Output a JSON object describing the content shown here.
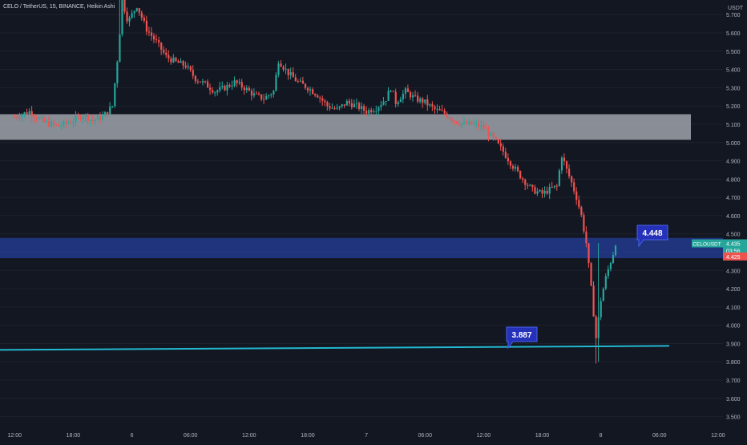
{
  "header": {
    "symbol_title": "CELO / TetherUS, 15, BINANCE, Heikin Ashi"
  },
  "chart_data": {
    "type": "candlestick",
    "title": "CELO / TetherUS, 15, BINANCE, Heikin Ashi",
    "currency_label": "USDT",
    "ylim": [
      3.45,
      5.78
    ],
    "y_ticks": [
      "5.700",
      "5.600",
      "5.500",
      "5.400",
      "5.300",
      "5.200",
      "5.100",
      "5.000",
      "4.900",
      "4.800",
      "4.700",
      "4.600",
      "4.500",
      "4.400",
      "4.300",
      "4.200",
      "4.100",
      "4.000",
      "3.900",
      "3.800",
      "3.700",
      "3.600",
      "3.500"
    ],
    "x_ticks": [
      "12:00",
      "18:00",
      "6",
      "06:00",
      "12:00",
      "18:00",
      "7",
      "06:00",
      "12:00",
      "18:00",
      "8",
      "06:00",
      "12:00",
      "18:00"
    ],
    "x_range_hours": [
      -1.5,
      72.5
    ],
    "up_color": "#26a69a",
    "down_color": "#ef5350",
    "background": "#131722",
    "grid": true,
    "anchors": [
      {
        "t": 0,
        "p": 5.14
      },
      {
        "t": 1.5,
        "p": 5.17
      },
      {
        "t": 3,
        "p": 5.11
      },
      {
        "t": 4.5,
        "p": 5.09
      },
      {
        "t": 6,
        "p": 5.12
      },
      {
        "t": 7,
        "p": 5.15
      },
      {
        "t": 8,
        "p": 5.12
      },
      {
        "t": 9,
        "p": 5.14
      },
      {
        "t": 10,
        "p": 5.2
      },
      {
        "t": 10.6,
        "p": 5.5
      },
      {
        "t": 11,
        "p": 5.78
      },
      {
        "t": 11.6,
        "p": 5.66
      },
      {
        "t": 12.5,
        "p": 5.75
      },
      {
        "t": 13.5,
        "p": 5.62
      },
      {
        "t": 14.5,
        "p": 5.55
      },
      {
        "t": 15.5,
        "p": 5.47
      },
      {
        "t": 16.5,
        "p": 5.44
      },
      {
        "t": 17.5,
        "p": 5.42
      },
      {
        "t": 18.5,
        "p": 5.35
      },
      {
        "t": 19.5,
        "p": 5.32
      },
      {
        "t": 20.5,
        "p": 5.28
      },
      {
        "t": 21.5,
        "p": 5.3
      },
      {
        "t": 22.5,
        "p": 5.33
      },
      {
        "t": 23.5,
        "p": 5.3
      },
      {
        "t": 24.5,
        "p": 5.26
      },
      {
        "t": 25.5,
        "p": 5.24
      },
      {
        "t": 26.5,
        "p": 5.28
      },
      {
        "t": 27,
        "p": 5.45
      },
      {
        "t": 28,
        "p": 5.38
      },
      {
        "t": 29,
        "p": 5.33
      },
      {
        "t": 30,
        "p": 5.3
      },
      {
        "t": 31,
        "p": 5.26
      },
      {
        "t": 32,
        "p": 5.2
      },
      {
        "t": 33,
        "p": 5.18
      },
      {
        "t": 34,
        "p": 5.22
      },
      {
        "t": 35,
        "p": 5.2
      },
      {
        "t": 36,
        "p": 5.17
      },
      {
        "t": 37,
        "p": 5.19
      },
      {
        "t": 38,
        "p": 5.24
      },
      {
        "t": 38.5,
        "p": 5.3
      },
      {
        "t": 39,
        "p": 5.22
      },
      {
        "t": 40,
        "p": 5.28
      },
      {
        "t": 41,
        "p": 5.24
      },
      {
        "t": 42,
        "p": 5.22
      },
      {
        "t": 43,
        "p": 5.18
      },
      {
        "t": 44,
        "p": 5.16
      },
      {
        "t": 45,
        "p": 5.12
      },
      {
        "t": 46,
        "p": 5.1
      },
      {
        "t": 47,
        "p": 5.1
      },
      {
        "t": 48,
        "p": 5.08
      },
      {
        "t": 49,
        "p": 5.02
      },
      {
        "t": 50,
        "p": 4.95
      },
      {
        "t": 51,
        "p": 4.87
      },
      {
        "t": 52,
        "p": 4.8
      },
      {
        "t": 53,
        "p": 4.74
      },
      {
        "t": 54,
        "p": 4.72
      },
      {
        "t": 55,
        "p": 4.75
      },
      {
        "t": 55.5,
        "p": 4.76
      },
      {
        "t": 56,
        "p": 4.93
      },
      {
        "t": 56.5,
        "p": 4.85
      },
      {
        "t": 57,
        "p": 4.78
      },
      {
        "t": 57.5,
        "p": 4.7
      },
      {
        "t": 58,
        "p": 4.6
      },
      {
        "t": 58.5,
        "p": 4.45
      },
      {
        "t": 59,
        "p": 4.2
      },
      {
        "t": 59.5,
        "p": 3.93
      },
      {
        "t": 60,
        "p": 4.14
      },
      {
        "t": 60.5,
        "p": 4.26
      },
      {
        "t": 61,
        "p": 4.35
      },
      {
        "t": 61.5,
        "p": 4.435
      }
    ],
    "current_price": {
      "symbol": "CELOUSDT",
      "price": "4.435",
      "countdown": "03:56",
      "low_value": "4.425"
    },
    "zones": [
      {
        "name": "resistance",
        "from": 5.015,
        "to": 5.155,
        "color": "#b2b5be"
      },
      {
        "name": "support",
        "from": 4.367,
        "to": 4.478,
        "color": "#2440a0"
      }
    ],
    "trendline": {
      "from": {
        "t": -1.5,
        "p": 3.865
      },
      "to": {
        "t": 67,
        "p": 3.887
      },
      "color": "#22b8cf"
    },
    "price_labels": [
      {
        "value": "4.448",
        "t": 69,
        "p": 4.448
      },
      {
        "value": "3.887",
        "t": 65.5,
        "p": 3.887
      }
    ]
  }
}
